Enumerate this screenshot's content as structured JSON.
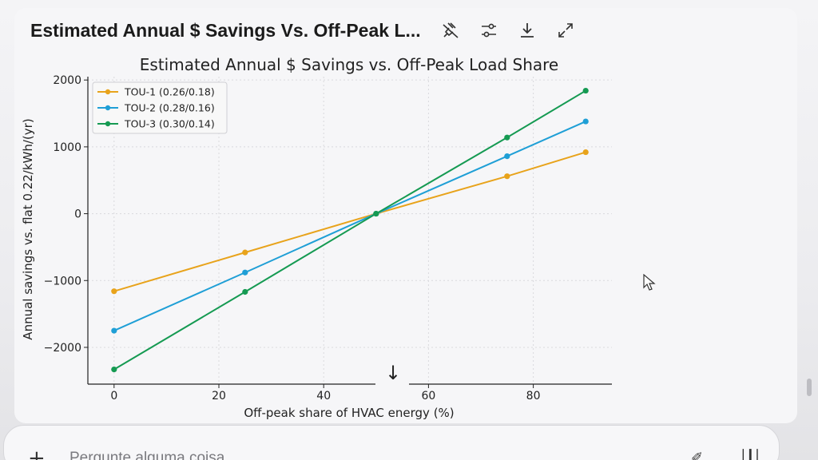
{
  "card": {
    "title": "Estimated Annual $ Savings Vs. Off-Peak L...",
    "tools": [
      "unpin-icon",
      "settings-sliders-icon",
      "download-icon",
      "expand-icon"
    ]
  },
  "composer": {
    "placeholder": "Pergunte alguma coisa",
    "plus": "+"
  },
  "chart_data": {
    "type": "line",
    "title": "Estimated Annual $ Savings vs. Off-Peak Load Share",
    "xlabel": "Off-peak share of HVAC energy (%)",
    "ylabel": "Annual savings vs. flat 0.22/kWh/(yr)",
    "xlim": [
      -5,
      95
    ],
    "ylim": [
      -2550,
      2050
    ],
    "xticks": [
      0,
      20,
      40,
      60,
      80
    ],
    "yticks": [
      2000,
      1000,
      0,
      -1000,
      -2000
    ],
    "ytick_labels": [
      "2000",
      "1000",
      "0",
      "−1000",
      "−2000"
    ],
    "grid": true,
    "legend": "top-left",
    "x": [
      0,
      25,
      50,
      75,
      90
    ],
    "series": [
      {
        "name": "TOU-1 (0.26/0.18)",
        "color": "#e8a31b",
        "values": [
          -1160,
          -580,
          0,
          560,
          920
        ]
      },
      {
        "name": "TOU-2 (0.28/0.16)",
        "color": "#1f9fd6",
        "values": [
          -1750,
          -880,
          0,
          860,
          1380
        ]
      },
      {
        "name": "TOU-3 (0.30/0.14)",
        "color": "#159a52",
        "values": [
          -2330,
          -1170,
          0,
          1140,
          1840
        ]
      }
    ],
    "annotation": "↓"
  }
}
